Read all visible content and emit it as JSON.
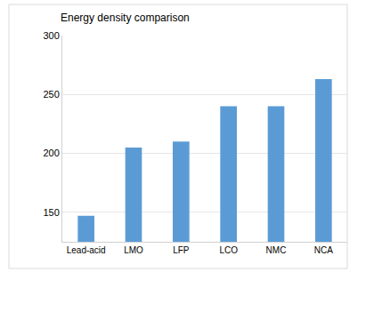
{
  "chart_data": {
    "type": "bar",
    "title": "Energy density comparison",
    "categories": [
      "Lead-acid",
      "LMO",
      "LFP",
      "LCO",
      "NMC",
      "NCA"
    ],
    "values": [
      147,
      205,
      210,
      240,
      240,
      263
    ],
    "color": "#5b9bd5",
    "ylim": [
      125,
      300
    ],
    "yticks": [
      150,
      200,
      250,
      300
    ],
    "grid": true
  }
}
